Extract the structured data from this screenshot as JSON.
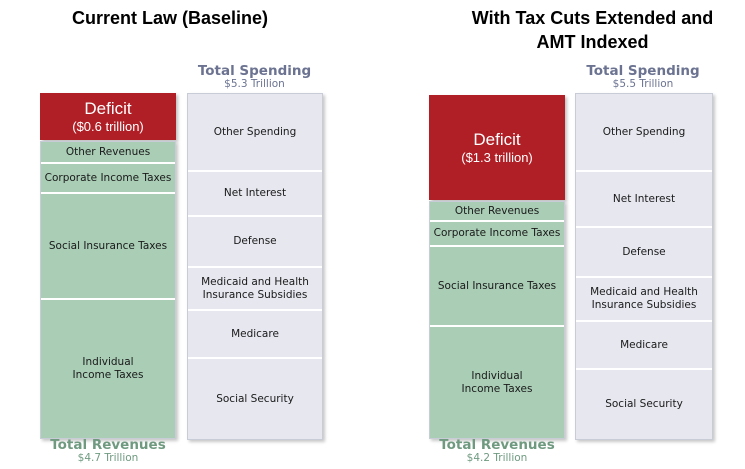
{
  "panels": [
    {
      "title": "Current Law (Baseline)",
      "total_spending": {
        "label": "Total Spending",
        "value": "$5.3 Trillion"
      },
      "total_revenues": {
        "label": "Total Revenues",
        "value": "$4.7 Trillion"
      },
      "deficit": {
        "label": "Deficit",
        "value": "($0.6 trillion)"
      },
      "spending_items": [
        {
          "label": "Other Spending",
          "frac": 0.227
        },
        {
          "label": "Net Interest",
          "frac": 0.129
        },
        {
          "label": "Defense",
          "frac": 0.147
        },
        {
          "label": "Medicaid and Health\nInsurance Subsidies",
          "frac": 0.126
        },
        {
          "label": "Medicare",
          "frac": 0.139
        },
        {
          "label": "Social Security",
          "frac": 0.232
        }
      ],
      "revenue_items": [
        {
          "label": "Other Revenues",
          "frac": 0.073
        },
        {
          "label": "Corporate Income Taxes",
          "frac": 0.101
        },
        {
          "label": "Social Insurance Taxes",
          "frac": 0.358
        },
        {
          "label": "Individual\nIncome Taxes",
          "frac": 0.468
        }
      ]
    },
    {
      "title_lines": [
        "With Tax Cuts Extended and",
        "AMT Indexed"
      ],
      "total_spending": {
        "label": "Total Spending",
        "value": "$5.5 Trillion"
      },
      "total_revenues": {
        "label": "Total Revenues",
        "value": "$4.2 Trillion"
      },
      "deficit": {
        "label": "Deficit",
        "value": "($1.3 trillion)"
      },
      "spending_items": [
        {
          "label": "Other Spending",
          "frac": 0.226
        },
        {
          "label": "Net Interest",
          "frac": 0.163
        },
        {
          "label": "Defense",
          "frac": 0.145
        },
        {
          "label": "Medicaid and Health\nInsurance Subsidies",
          "frac": 0.127
        },
        {
          "label": "Medicare",
          "frac": 0.139
        },
        {
          "label": "Social Security",
          "frac": 0.2
        }
      ],
      "revenue_items": [
        {
          "label": "Other Revenues",
          "frac": 0.084
        },
        {
          "label": "Corporate Income Taxes",
          "frac": 0.105
        },
        {
          "label": "Social Insurance Taxes",
          "frac": 0.337
        },
        {
          "label": "Individual\nIncome Taxes",
          "frac": 0.474
        }
      ]
    }
  ]
}
